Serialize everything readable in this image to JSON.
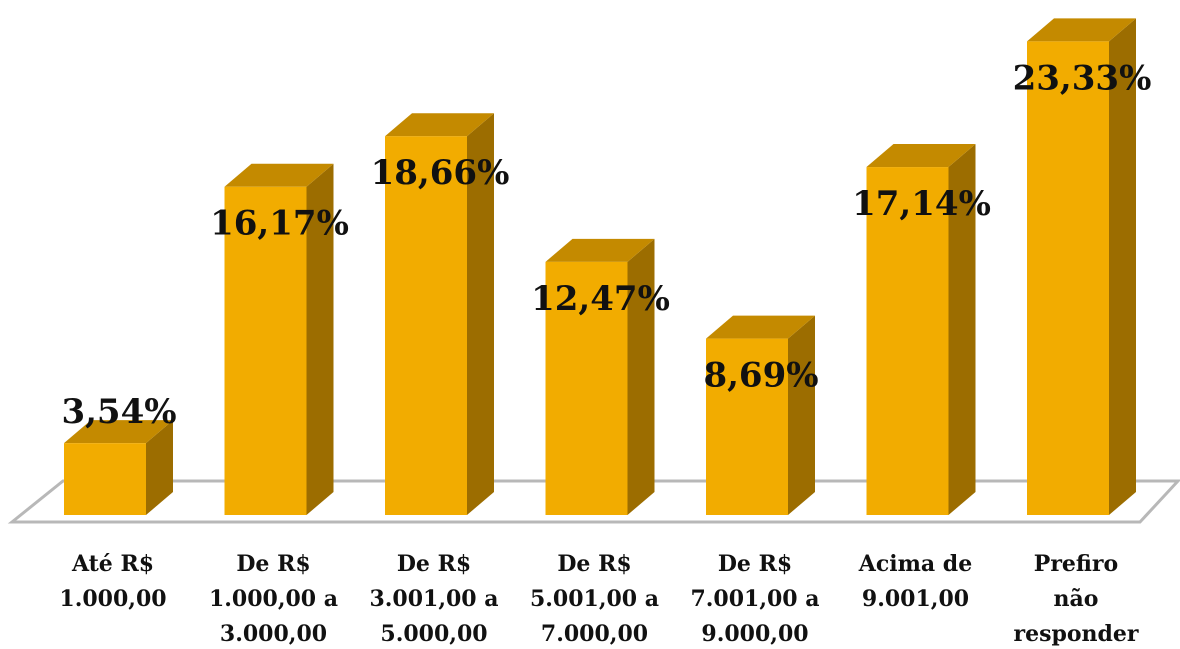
{
  "chart_data": {
    "type": "bar",
    "categories": [
      [
        "Até R$",
        "1.000,00"
      ],
      [
        "De R$",
        "1.000,00 a",
        "3.000,00"
      ],
      [
        "De R$",
        "3.001,00 a",
        "5.000,00"
      ],
      [
        "De R$",
        "5.001,00 a",
        "7.000,00"
      ],
      [
        "De R$",
        "7.001,00 a",
        "9.000,00"
      ],
      [
        "Acima de",
        "9.001,00"
      ],
      [
        "Prefiro",
        "não",
        "responder"
      ]
    ],
    "values": [
      3.54,
      16.17,
      18.66,
      12.47,
      8.69,
      17.14,
      23.33
    ],
    "data_labels": [
      "3,54%",
      "16,17%",
      "18,66%",
      "12,47%",
      "8,69%",
      "17,14%",
      "23,33%"
    ],
    "title": "",
    "xlabel": "",
    "ylabel": "",
    "ylim": [
      0,
      25
    ],
    "grid": false,
    "legend": "none",
    "style": "3d",
    "colors": {
      "bar_front": "#f2ac00",
      "bar_top": "#c48a00",
      "bar_side": "#9c6d00",
      "floor_stroke": "#b8b8b8"
    }
  }
}
